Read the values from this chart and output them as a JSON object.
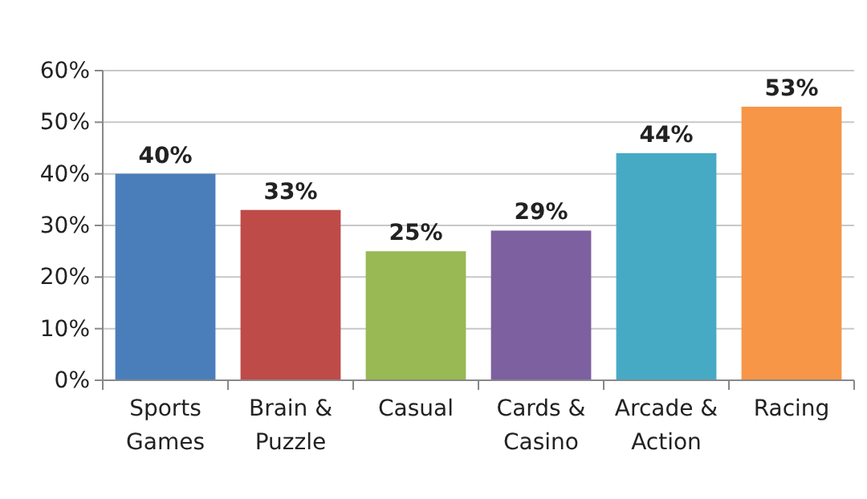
{
  "chart_data": {
    "type": "bar",
    "categories": [
      "Sports\nGames",
      "Brain &\nPuzzle",
      "Casual",
      "Cards &\nCasino",
      "Arcade &\nAction",
      "Racing"
    ],
    "values": [
      40,
      33,
      25,
      29,
      44,
      53
    ],
    "value_labels": [
      "40%",
      "33%",
      "25%",
      "29%",
      "44%",
      "53%"
    ],
    "colors": [
      "#4a7ebb",
      "#be4b48",
      "#98b954",
      "#7d60a0",
      "#46aac5",
      "#f79646"
    ],
    "ylim": [
      0,
      60
    ],
    "yticks": [
      {
        "value": 0,
        "label": "0%"
      },
      {
        "value": 10,
        "label": "10%"
      },
      {
        "value": 20,
        "label": "20%"
      },
      {
        "value": 30,
        "label": "30%"
      },
      {
        "value": 40,
        "label": "40%"
      },
      {
        "value": 50,
        "label": "50%"
      },
      {
        "value": 60,
        "label": "60%"
      }
    ],
    "grid": "y"
  }
}
